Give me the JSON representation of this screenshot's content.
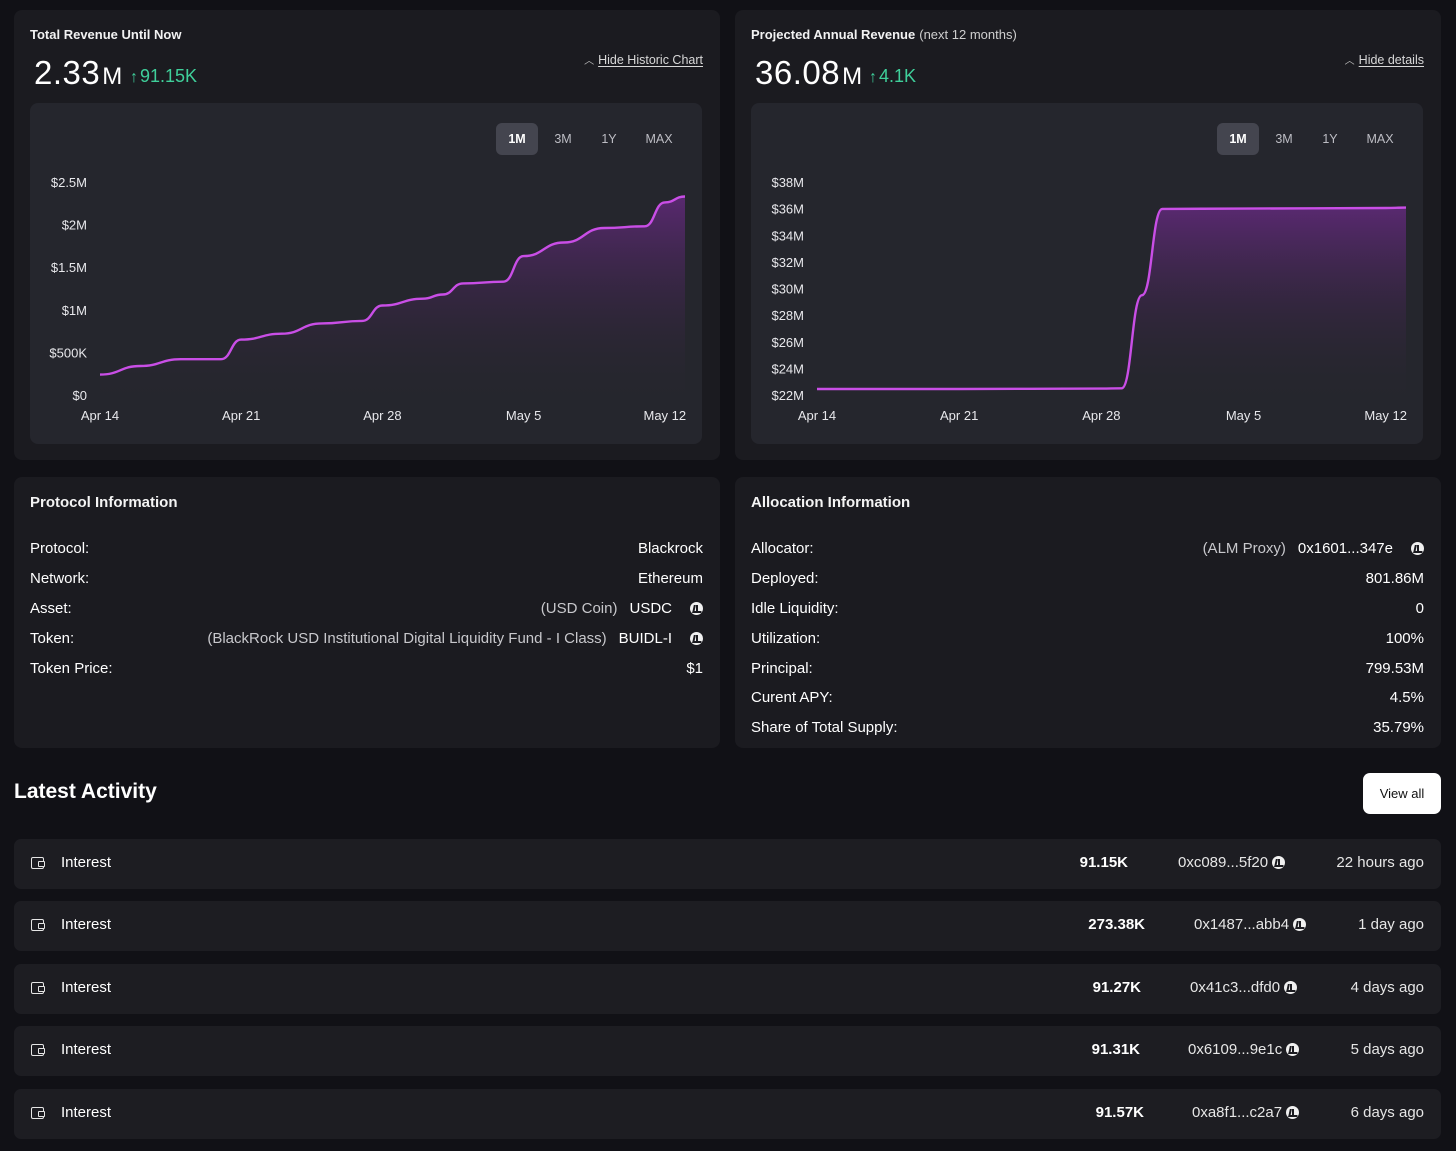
{
  "revenue_card": {
    "title": "Total Revenue Until Now",
    "value": "2.33",
    "unit": "M",
    "delta": "91.15K",
    "toggle_label": "Hide Historic Chart",
    "ranges": [
      "1M",
      "3M",
      "1Y",
      "MAX"
    ],
    "active_range": "1M"
  },
  "projected_card": {
    "title": "Projected Annual Revenue",
    "subtitle": "(next 12 months)",
    "value": "36.08",
    "unit": "M",
    "delta": "4.1K",
    "toggle_label": "Hide details",
    "ranges": [
      "1M",
      "3M",
      "1Y",
      "MAX"
    ],
    "active_range": "1M"
  },
  "chart_data": [
    {
      "type": "area",
      "x_tick_labels": [
        "Apr 14",
        "Apr 21",
        "Apr 28",
        "May 5",
        "May 12"
      ],
      "y_tick_labels": [
        "$0",
        "$500K",
        "$1M",
        "$1.5M",
        "$2M",
        "$2.5M"
      ],
      "ylim": [
        0,
        2500000
      ],
      "x": [
        "Apr 14",
        "Apr 16",
        "Apr 18",
        "Apr 20",
        "Apr 21",
        "Apr 23",
        "Apr 25",
        "Apr 27",
        "Apr 28",
        "Apr 30",
        "May 1",
        "May 2",
        "May 4",
        "May 5",
        "May 7",
        "May 9",
        "May 11",
        "May 12",
        "May 13"
      ],
      "y": [
        240000,
        340000,
        420000,
        420000,
        650000,
        720000,
        840000,
        870000,
        1050000,
        1130000,
        1180000,
        1310000,
        1330000,
        1630000,
        1790000,
        1960000,
        1980000,
        2260000,
        2330000
      ],
      "line_color": "#c94ee6",
      "grid": false
    },
    {
      "type": "area",
      "x_tick_labels": [
        "Apr 14",
        "Apr 21",
        "Apr 28",
        "May 5",
        "May 12"
      ],
      "y_tick_labels": [
        "$22M",
        "$24M",
        "$26M",
        "$28M",
        "$30M",
        "$32M",
        "$34M",
        "$36M",
        "$38M"
      ],
      "ylim": [
        22000000,
        38000000
      ],
      "x": [
        "Apr 14",
        "Apr 21",
        "Apr 28",
        "Apr 29",
        "Apr 30",
        "May 1",
        "May 5",
        "May 12",
        "May 13"
      ],
      "y": [
        22450000,
        22450000,
        22480000,
        22500000,
        29500000,
        35980000,
        36000000,
        36050000,
        36080000
      ],
      "line_color": "#c94ee6",
      "grid": false
    }
  ],
  "protocol": {
    "title": "Protocol Information",
    "rows": [
      {
        "label": "Protocol:",
        "note": "",
        "value": "Blackrock",
        "icon": ""
      },
      {
        "label": "Network:",
        "note": "",
        "value": "Ethereum",
        "icon": ""
      },
      {
        "label": "Asset:",
        "note": "(USD Coin)",
        "value": "USDC",
        "icon": "explorer-icon"
      },
      {
        "label": "Token:",
        "note": "(BlackRock USD Institutional Digital Liquidity Fund - I Class)",
        "value": "BUIDL-I",
        "icon": "explorer-icon"
      },
      {
        "label": "Token Price:",
        "note": "",
        "value": "$1",
        "icon": ""
      }
    ]
  },
  "allocation": {
    "title": "Allocation Information",
    "rows": [
      {
        "label": "Allocator:",
        "note": "(ALM Proxy)",
        "value": "0x1601...347e",
        "icon": "explorer-icon"
      },
      {
        "label": "Deployed:",
        "note": "",
        "value": "801.86M",
        "icon": ""
      },
      {
        "label": "Idle Liquidity:",
        "note": "",
        "value": "0",
        "icon": ""
      },
      {
        "label": "Utilization:",
        "note": "",
        "value": "100%",
        "icon": ""
      },
      {
        "label": "Principal:",
        "note": "",
        "value": "799.53M",
        "icon": ""
      },
      {
        "label": "Curent APY:",
        "note": "",
        "value": "4.5%",
        "icon": ""
      },
      {
        "label": "Share of Total Supply:",
        "note": "",
        "value": "35.79%",
        "icon": ""
      }
    ]
  },
  "activity": {
    "title": "Latest Activity",
    "view_all": "View all",
    "rows": [
      {
        "type": "Interest",
        "amount": "91.15K",
        "hash": "0xc089...5f20",
        "time": "22 hours ago"
      },
      {
        "type": "Interest",
        "amount": "273.38K",
        "hash": "0x1487...abb4",
        "time": "1 day ago"
      },
      {
        "type": "Interest",
        "amount": "91.27K",
        "hash": "0x41c3...dfd0",
        "time": "4 days ago"
      },
      {
        "type": "Interest",
        "amount": "91.31K",
        "hash": "0x6109...9e1c",
        "time": "5 days ago"
      },
      {
        "type": "Interest",
        "amount": "91.57K",
        "hash": "0xa8f1...c2a7",
        "time": "6 days ago"
      }
    ]
  }
}
